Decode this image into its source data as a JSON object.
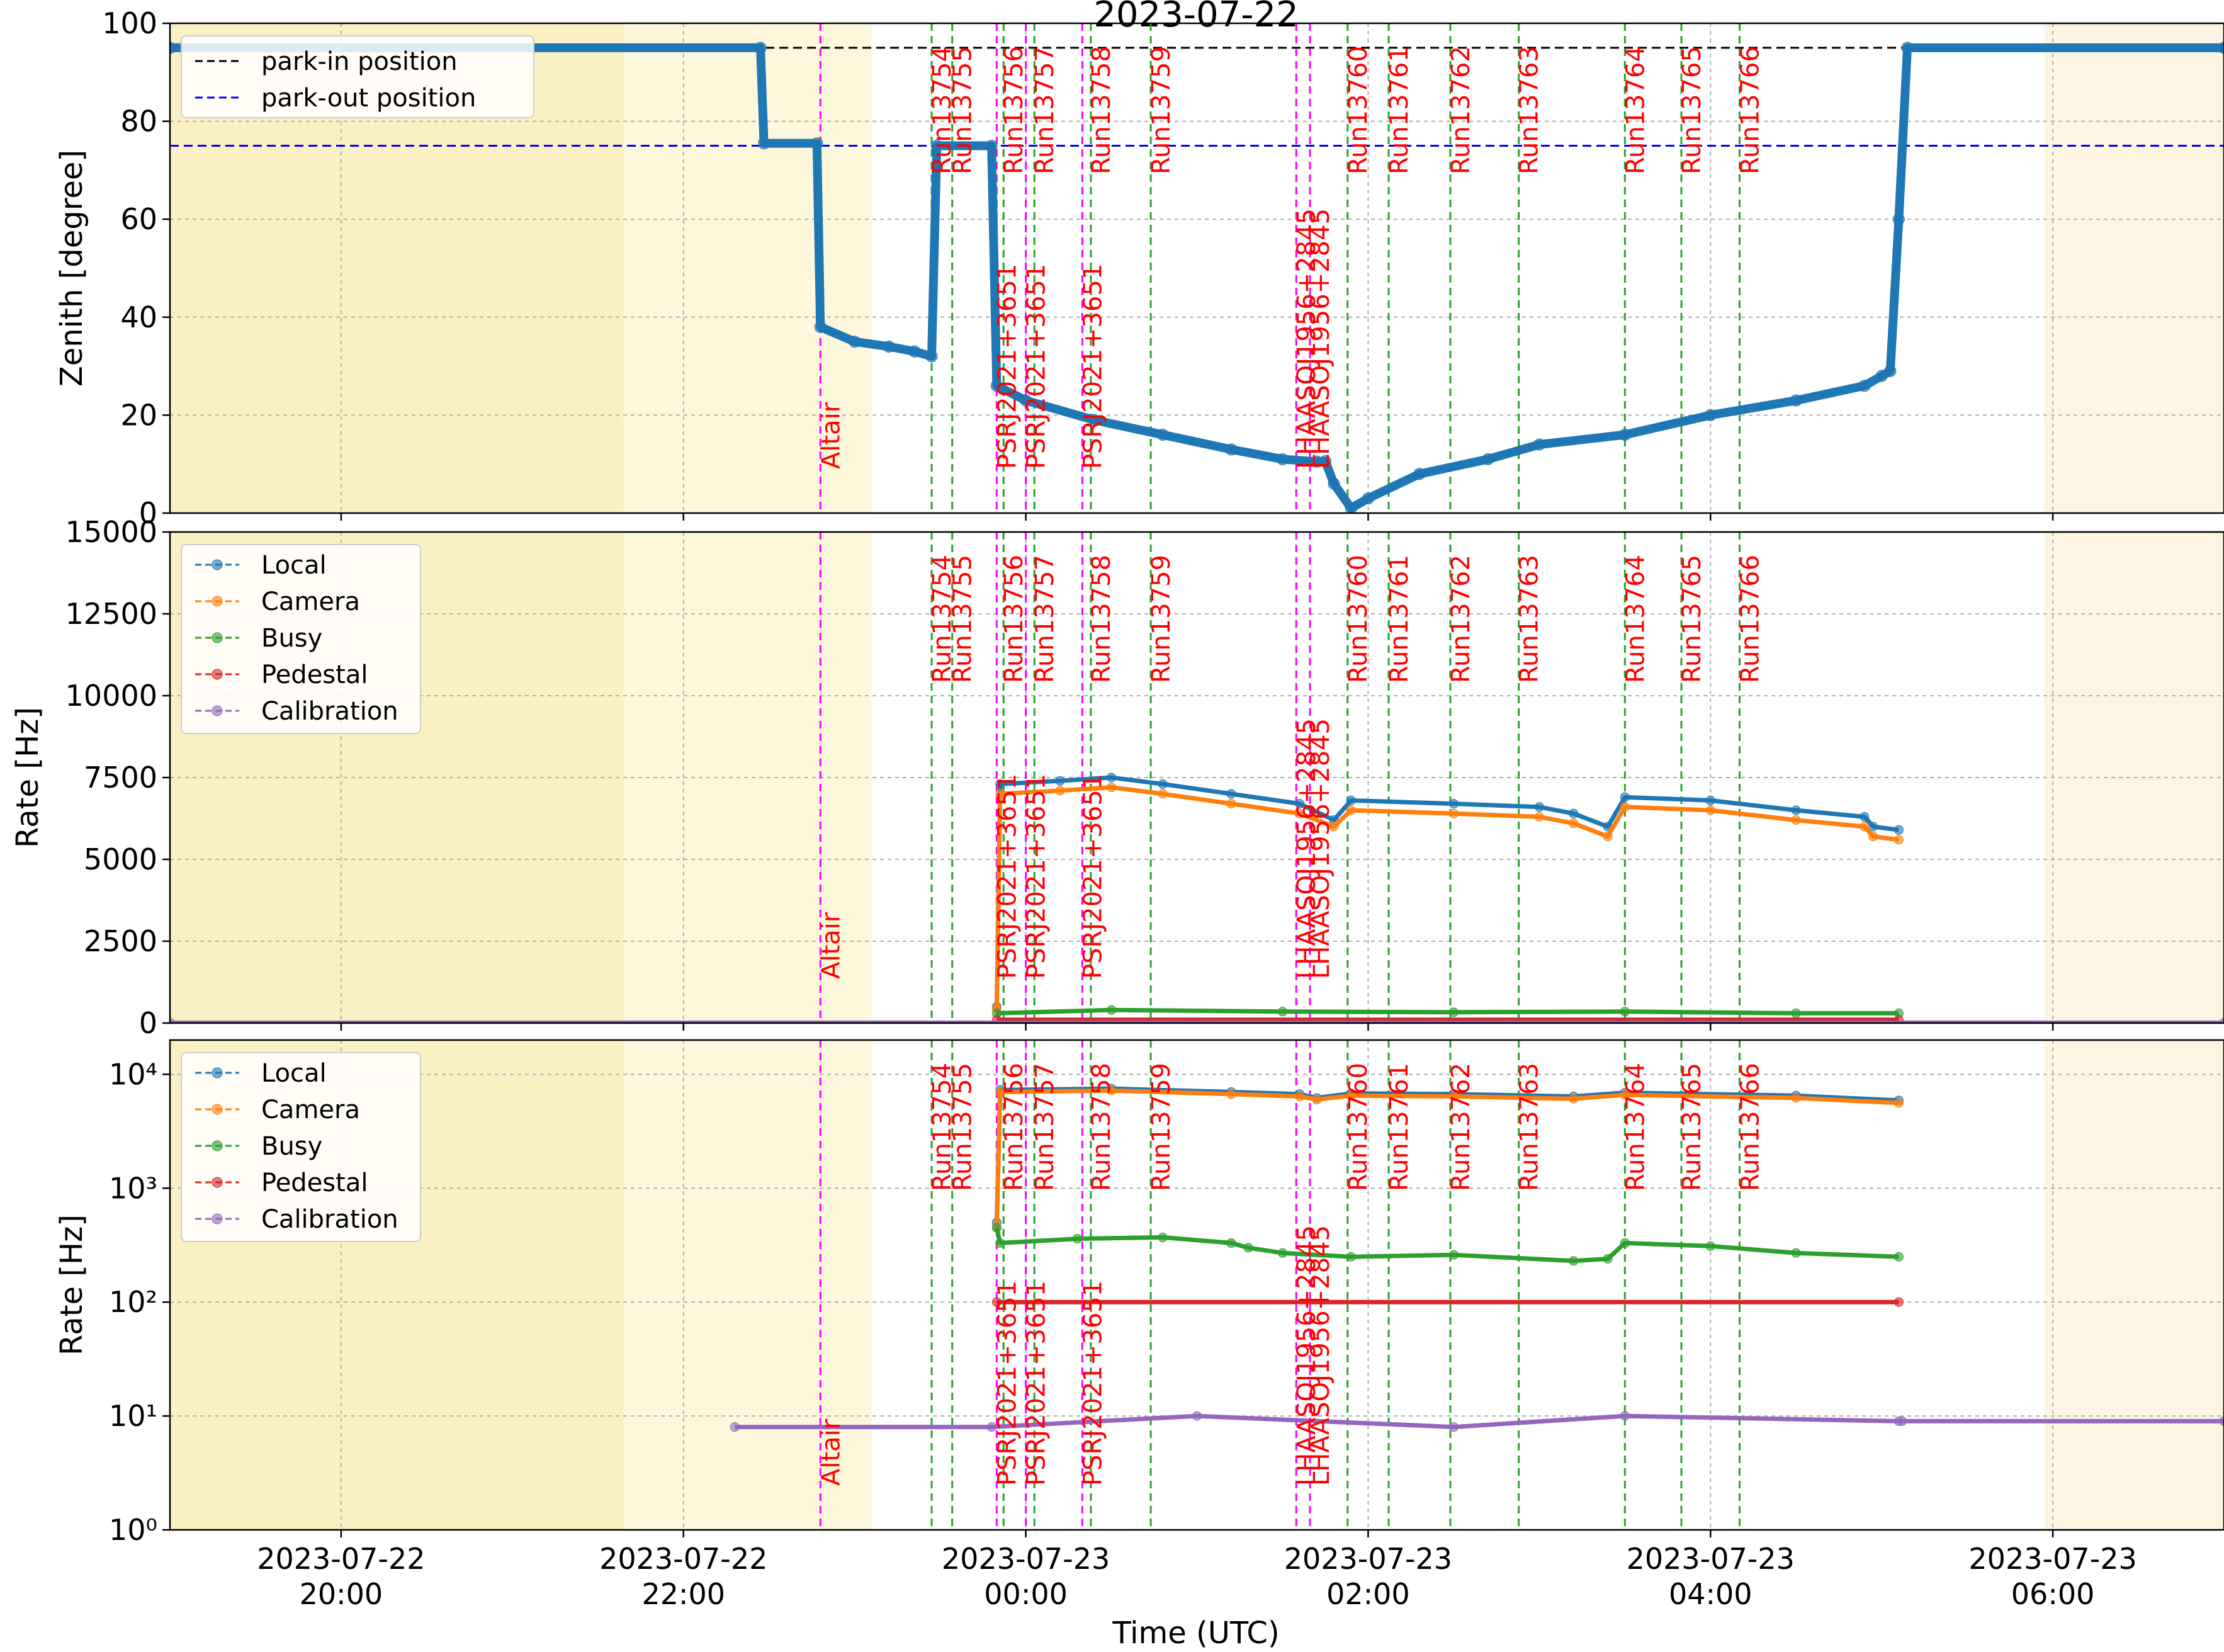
{
  "figure": {
    "title": "2023-07-22",
    "xlabel": "Time (UTC)",
    "x_ticks": [
      {
        "t": 20,
        "line1": "2023-07-22",
        "line2": "20:00"
      },
      {
        "t": 22,
        "line1": "2023-07-22",
        "line2": "22:00"
      },
      {
        "t": 24,
        "line1": "2023-07-23",
        "line2": "00:00"
      },
      {
        "t": 26,
        "line1": "2023-07-23",
        "line2": "02:00"
      },
      {
        "t": 28,
        "line1": "2023-07-23",
        "line2": "04:00"
      },
      {
        "t": 30,
        "line1": "2023-07-23",
        "line2": "06:00"
      }
    ],
    "xlim": [
      "2023-07-22 19:00",
      "2023-07-23 07:00"
    ],
    "xlim_hours": [
      19.0,
      31.0
    ],
    "twilight_bands": [
      {
        "from": 19.0,
        "to": 21.65,
        "color": "#fbefc4"
      },
      {
        "from": 21.65,
        "to": 23.1,
        "color": "#fdf8dc"
      },
      {
        "from": 29.95,
        "to": 31.0,
        "color": "#fdf4e2"
      }
    ]
  },
  "chart_data": [
    {
      "type": "line",
      "panel": "zenith",
      "ylabel": "Zenith [degree]",
      "ylim": [
        0,
        100
      ],
      "yticks": [
        "0",
        "20",
        "40",
        "60",
        "80",
        "100"
      ],
      "grid": true,
      "legend_position": "top-left",
      "reference_lines": [
        {
          "name": "park-in position",
          "y": 95,
          "color": "#000000"
        },
        {
          "name": "park-out position",
          "y": 75,
          "color": "#0000ff"
        }
      ],
      "series": [
        {
          "color": "#1f77b4",
          "points": [
            [
              19.0,
              95
            ],
            [
              22.45,
              95
            ],
            [
              22.47,
              75.5
            ],
            [
              22.78,
              75.5
            ],
            [
              22.8,
              38
            ],
            [
              23.0,
              35
            ],
            [
              23.2,
              34
            ],
            [
              23.35,
              33
            ],
            [
              23.45,
              32
            ],
            [
              23.48,
              75
            ],
            [
              23.8,
              75
            ],
            [
              23.83,
              26
            ],
            [
              24.0,
              23
            ],
            [
              24.4,
              19
            ],
            [
              24.8,
              16
            ],
            [
              25.2,
              13
            ],
            [
              25.5,
              11
            ],
            [
              25.7,
              10.5
            ],
            [
              25.75,
              10.6
            ],
            [
              25.8,
              6
            ],
            [
              25.9,
              1
            ],
            [
              26.0,
              3
            ],
            [
              26.3,
              8
            ],
            [
              26.7,
              11
            ],
            [
              27.0,
              14
            ],
            [
              27.5,
              16
            ],
            [
              28.0,
              20
            ],
            [
              28.5,
              23
            ],
            [
              28.9,
              26
            ],
            [
              29.0,
              28
            ],
            [
              29.05,
              29
            ],
            [
              29.1,
              60
            ],
            [
              29.15,
              95
            ],
            [
              31.0,
              95
            ]
          ]
        }
      ]
    },
    {
      "type": "line",
      "panel": "rate-linear",
      "ylabel": "Rate [Hz]",
      "ylim": [
        0,
        15000
      ],
      "yticks": [
        "0",
        "2500",
        "5000",
        "7500",
        "10000",
        "12500",
        "15000"
      ],
      "grid": true,
      "legend_position": "top-left",
      "series": [
        {
          "name": "Local",
          "color": "#1f77b4",
          "points": [
            [
              23.83,
              500
            ],
            [
              23.85,
              7300
            ],
            [
              24.2,
              7400
            ],
            [
              24.5,
              7500
            ],
            [
              24.8,
              7300
            ],
            [
              25.2,
              7000
            ],
            [
              25.6,
              6700
            ],
            [
              25.8,
              6200
            ],
            [
              25.9,
              6800
            ],
            [
              26.5,
              6700
            ],
            [
              27.0,
              6600
            ],
            [
              27.2,
              6400
            ],
            [
              27.4,
              6000
            ],
            [
              27.5,
              6900
            ],
            [
              28.0,
              6800
            ],
            [
              28.5,
              6500
            ],
            [
              28.9,
              6300
            ],
            [
              28.95,
              6000
            ],
            [
              29.1,
              5900
            ]
          ]
        },
        {
          "name": "Camera",
          "color": "#ff7f0e",
          "points": [
            [
              23.83,
              450
            ],
            [
              23.85,
              7000
            ],
            [
              24.2,
              7100
            ],
            [
              24.5,
              7200
            ],
            [
              24.8,
              7000
            ],
            [
              25.2,
              6700
            ],
            [
              25.6,
              6400
            ],
            [
              25.8,
              6000
            ],
            [
              25.9,
              6500
            ],
            [
              26.5,
              6400
            ],
            [
              27.0,
              6300
            ],
            [
              27.2,
              6100
            ],
            [
              27.4,
              5700
            ],
            [
              27.5,
              6600
            ],
            [
              28.0,
              6500
            ],
            [
              28.5,
              6200
            ],
            [
              28.9,
              6000
            ],
            [
              28.95,
              5700
            ],
            [
              29.1,
              5600
            ]
          ]
        },
        {
          "name": "Busy",
          "color": "#2ca02c",
          "points": [
            [
              23.83,
              300
            ],
            [
              24.5,
              400
            ],
            [
              25.5,
              350
            ],
            [
              26.5,
              330
            ],
            [
              27.5,
              350
            ],
            [
              28.5,
              300
            ],
            [
              29.1,
              300
            ]
          ]
        },
        {
          "name": "Pedestal",
          "color": "#d62728",
          "points": [
            [
              23.83,
              100
            ],
            [
              29.1,
              100
            ]
          ]
        },
        {
          "name": "Calibration",
          "color": "#9467bd",
          "points": [
            [
              19.0,
              10
            ],
            [
              31.0,
              10
            ]
          ]
        }
      ]
    },
    {
      "type": "line",
      "panel": "rate-log",
      "ylabel": "Rate [Hz]",
      "scale": "log",
      "ylim": [
        1,
        20000
      ],
      "yticks": [
        "10⁰",
        "10¹",
        "10²",
        "10³",
        "10⁴"
      ],
      "grid": true,
      "legend_position": "top-left",
      "series": [
        {
          "name": "Local",
          "color": "#1f77b4",
          "points": [
            [
              23.83,
              500
            ],
            [
              23.85,
              7300
            ],
            [
              24.5,
              7500
            ],
            [
              25.2,
              7000
            ],
            [
              25.6,
              6700
            ],
            [
              25.7,
              6200
            ],
            [
              25.9,
              6800
            ],
            [
              26.5,
              6700
            ],
            [
              27.2,
              6400
            ],
            [
              27.5,
              6900
            ],
            [
              28.5,
              6500
            ],
            [
              29.1,
              5900
            ]
          ]
        },
        {
          "name": "Camera",
          "color": "#ff7f0e",
          "points": [
            [
              23.83,
              450
            ],
            [
              23.85,
              7000
            ],
            [
              24.5,
              7200
            ],
            [
              25.2,
              6700
            ],
            [
              25.6,
              6400
            ],
            [
              25.7,
              6000
            ],
            [
              25.9,
              6500
            ],
            [
              26.5,
              6400
            ],
            [
              27.2,
              6100
            ],
            [
              27.5,
              6600
            ],
            [
              28.5,
              6200
            ],
            [
              29.1,
              5600
            ]
          ]
        },
        {
          "name": "Busy",
          "color": "#2ca02c",
          "points": [
            [
              23.83,
              450
            ],
            [
              23.85,
              330
            ],
            [
              24.3,
              360
            ],
            [
              24.8,
              370
            ],
            [
              25.2,
              330
            ],
            [
              25.3,
              300
            ],
            [
              25.5,
              270
            ],
            [
              25.9,
              250
            ],
            [
              26.5,
              260
            ],
            [
              27.2,
              230
            ],
            [
              27.4,
              240
            ],
            [
              27.5,
              330
            ],
            [
              28.0,
              310
            ],
            [
              28.5,
              270
            ],
            [
              29.1,
              250
            ]
          ]
        },
        {
          "name": "Pedestal",
          "color": "#d62728",
          "points": [
            [
              23.83,
              100
            ],
            [
              29.1,
              100
            ]
          ]
        },
        {
          "name": "Calibration",
          "color": "#9467bd",
          "points": [
            [
              22.3,
              8
            ],
            [
              23.8,
              8
            ],
            [
              25.0,
              10
            ],
            [
              26.5,
              8
            ],
            [
              27.5,
              10
            ],
            [
              29.1,
              9
            ],
            [
              29.12,
              9
            ],
            [
              31.0,
              9
            ]
          ]
        }
      ]
    }
  ],
  "annotations": {
    "source_lines": [
      {
        "label": "Altair",
        "t": 22.8
      },
      {
        "label": "PSRJ2021+3651",
        "t": 23.83
      },
      {
        "label": "PSRJ2021+3651",
        "t": 24.0
      },
      {
        "label": "PSRJ2021+3651",
        "t": 24.33
      },
      {
        "label": "LHAASOJ1956+2845",
        "t": 25.58
      },
      {
        "label": "LHAASOJ1956+2845",
        "t": 25.66
      }
    ],
    "run_lines": [
      {
        "label": "Run13754",
        "t": 23.45
      },
      {
        "label": "Run13755",
        "t": 23.57
      },
      {
        "label": "Run13756",
        "t": 23.87
      },
      {
        "label": "Run13757",
        "t": 24.05
      },
      {
        "label": "Run13758",
        "t": 24.38
      },
      {
        "label": "Run13759",
        "t": 24.73
      },
      {
        "label": "Run13760",
        "t": 25.88
      },
      {
        "label": "Run13761",
        "t": 26.12
      },
      {
        "label": "Run13762",
        "t": 26.48
      },
      {
        "label": "Run13763",
        "t": 26.88
      },
      {
        "label": "Run13764",
        "t": 27.5
      },
      {
        "label": "Run13765",
        "t": 27.83
      },
      {
        "label": "Run13766",
        "t": 28.17
      }
    ]
  }
}
